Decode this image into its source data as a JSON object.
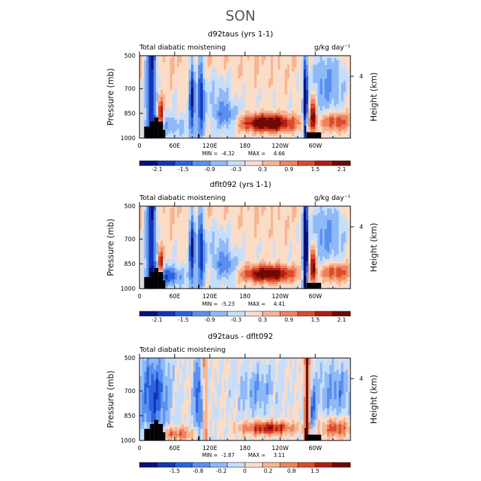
{
  "season": "SON",
  "colors": {
    "blues": [
      "#08117a",
      "#1435b8",
      "#2a62df",
      "#5a8ff0",
      "#8fb9f7",
      "#c7defa"
    ],
    "reds": [
      "#fbdcc6",
      "#f7b592",
      "#ee8360",
      "#dc4b2a",
      "#b31d12",
      "#6e0a05"
    ],
    "terrain": "#000000"
  },
  "chart_data": [
    {
      "type": "heatmap",
      "title": "d92taus (yrs 1-1)",
      "subtitle_left": "Total diabatic moistening",
      "subtitle_right": "g/kg day⁻¹",
      "ylabel": "Pressure (mb)",
      "ylabel_right": "Height (km)",
      "yticks": [
        "500",
        "700",
        "850",
        "1000"
      ],
      "yticks_right": [
        "4"
      ],
      "xticks": [
        "0",
        "60E",
        "120E",
        "180",
        "120W",
        "60W"
      ],
      "xlim": [
        0,
        360
      ],
      "ylim": [
        1000,
        500
      ],
      "min_label": "MIN =",
      "min": "-4.32",
      "max_label": "MAX =",
      "max": "4.66",
      "colorbar_labels": [
        "-2.1",
        "-1.5",
        "-0.9",
        "-0.3",
        "0.3",
        "0.9",
        "1.5",
        "2.1"
      ],
      "scale": 2.4
    },
    {
      "type": "heatmap",
      "title": "dflt092 (yrs 1-1)",
      "subtitle_left": "Total diabatic moistening",
      "subtitle_right": "g/kg day⁻¹",
      "ylabel": "Pressure (mb)",
      "ylabel_right": "Height (km)",
      "yticks": [
        "500",
        "700",
        "850",
        "1000"
      ],
      "yticks_right": [
        "4"
      ],
      "xticks": [
        "0",
        "60E",
        "120E",
        "180",
        "120W",
        "60W"
      ],
      "xlim": [
        0,
        360
      ],
      "ylim": [
        1000,
        500
      ],
      "min_label": "MIN =",
      "min": "-5.23",
      "max_label": "MAX =",
      "max": "4.41",
      "colorbar_labels": [
        "-2.1",
        "-1.5",
        "-0.9",
        "-0.3",
        "0.3",
        "0.9",
        "1.5",
        "2.1"
      ],
      "scale": 2.4
    },
    {
      "type": "heatmap",
      "title": "d92taus - dflt092",
      "subtitle_left": "Total diabatic moistening",
      "subtitle_right": "",
      "ylabel": "Pressure (mb)",
      "ylabel_right": "Height (km)",
      "yticks": [
        "500",
        "700",
        "850",
        "1000"
      ],
      "yticks_right": [
        "4"
      ],
      "xticks": [
        "0",
        "60E",
        "120E",
        "180",
        "120W",
        "60W"
      ],
      "xlim": [
        0,
        360
      ],
      "ylim": [
        1000,
        500
      ],
      "min_label": "MIN =",
      "min": "-1.87",
      "max_label": "MAX =",
      "max": "3.11",
      "colorbar_labels": [
        "-1.5",
        "-0.8",
        "-0.2",
        "0",
        "0.2",
        "0.8",
        "1.5"
      ],
      "scale": 2.0
    }
  ]
}
